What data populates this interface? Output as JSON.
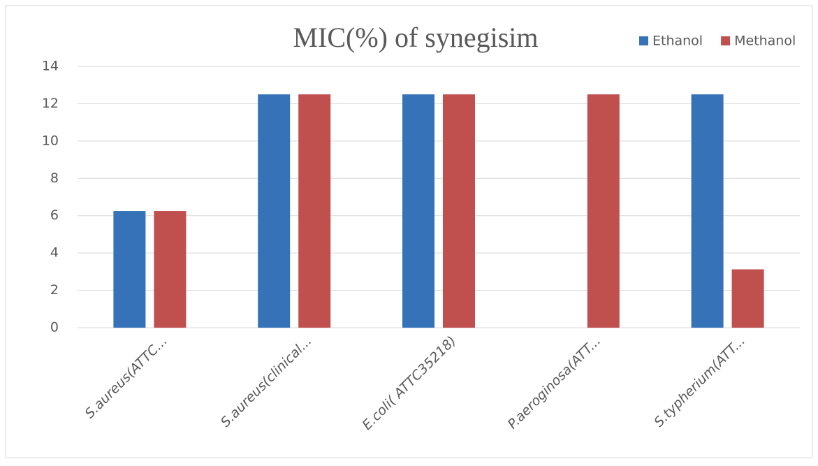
{
  "chart_data": {
    "type": "bar",
    "title": "MIC(%) of synegisim",
    "categories": [
      "S.aureus(ATTC...",
      "S.aureus(clinical...",
      "E.coli( ATTC35218)",
      "P.aeroginosa(ATT...",
      "S.typherium(ATT..."
    ],
    "series": [
      {
        "name": "Ethanol",
        "color": "#3672b8",
        "values": [
          6.25,
          12.5,
          12.5,
          0,
          12.5
        ]
      },
      {
        "name": "Methanol",
        "color": "#c0504d",
        "values": [
          6.25,
          12.5,
          12.5,
          12.5,
          3.125
        ]
      }
    ],
    "ylim": [
      0,
      14
    ],
    "yticks": [
      0,
      2,
      4,
      6,
      8,
      10,
      12,
      14
    ],
    "grid": true,
    "legend": "top-right"
  }
}
